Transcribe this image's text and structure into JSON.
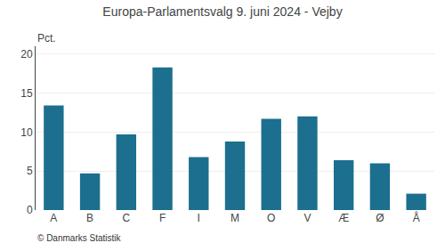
{
  "chart_data": {
    "type": "bar",
    "title": "Europa-Parlamentsvalg 9. juni 2024 - Vejby",
    "categories": [
      "A",
      "B",
      "C",
      "F",
      "I",
      "M",
      "O",
      "V",
      "Æ",
      "Ø",
      "Å"
    ],
    "values": [
      13.4,
      4.7,
      9.7,
      18.3,
      6.8,
      8.8,
      11.7,
      12.0,
      6.4,
      6.0,
      2.1
    ],
    "color": "#1c6f8f",
    "ylabel": "Pct.",
    "ylim": [
      0,
      21
    ],
    "yticks": [
      0,
      5,
      10,
      15,
      20
    ],
    "grid": true,
    "annotations": [
      "© Danmarks Statistik"
    ]
  }
}
